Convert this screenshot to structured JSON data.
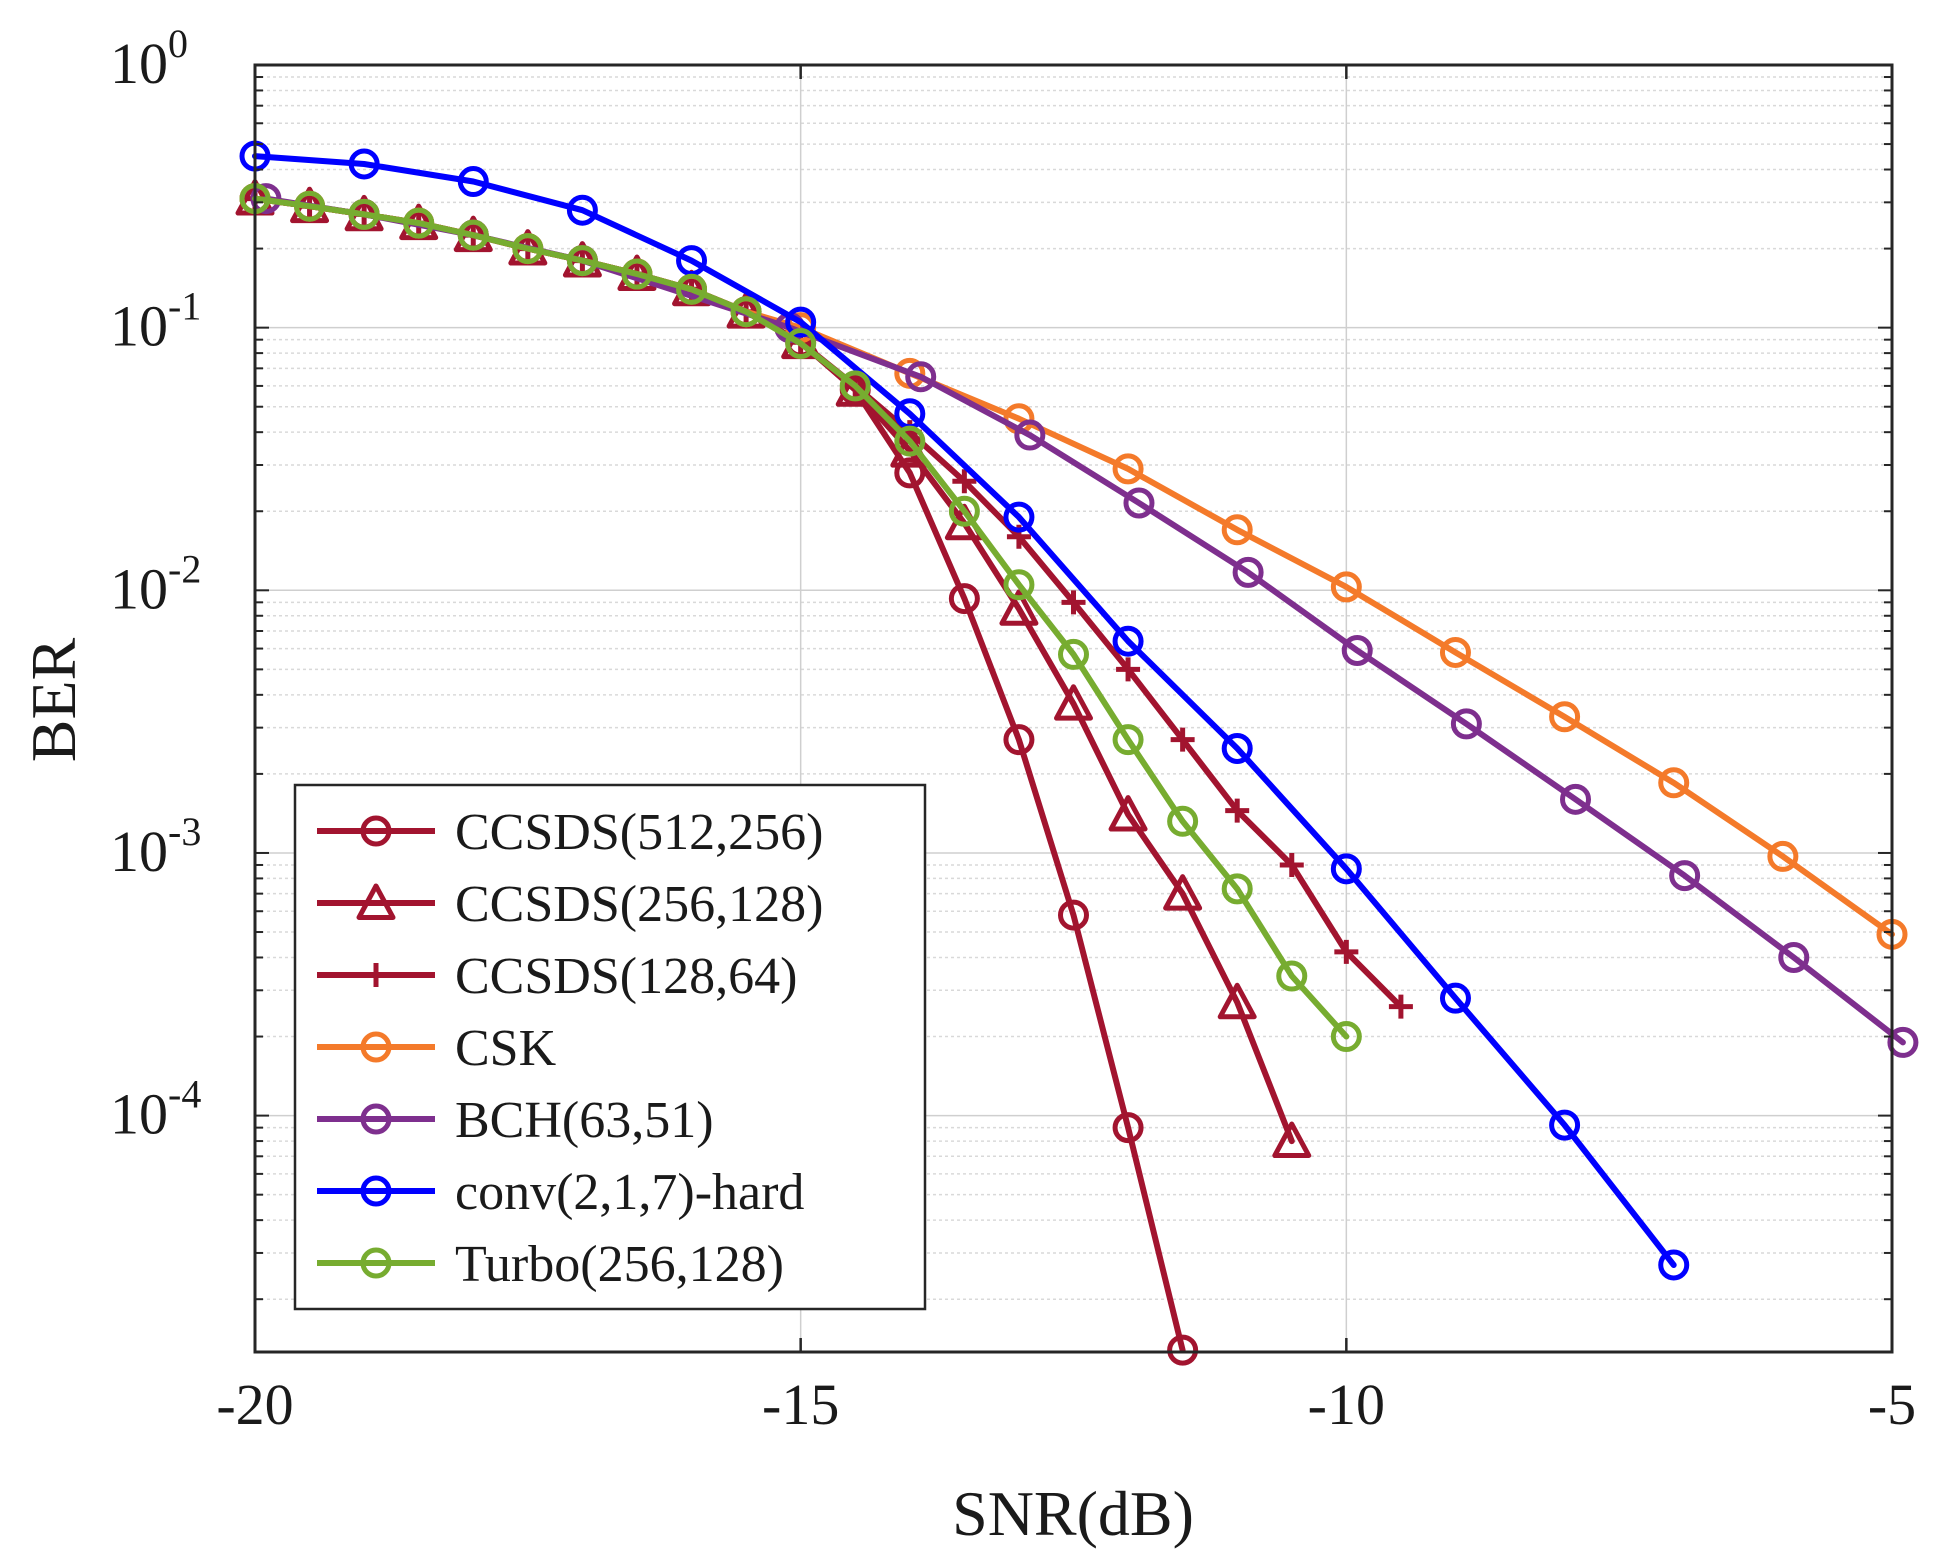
{
  "chart_data": {
    "type": "line",
    "yscale": "log",
    "xlabel": "SNR(dB)",
    "ylabel": "BER",
    "xlim": [
      -20,
      -5
    ],
    "ylim_log10": [
      -4.9,
      0
    ],
    "xticks": [
      -20,
      -15,
      -10,
      -5
    ],
    "xtick_labels": [
      "-20",
      "-15",
      "-10",
      "-5"
    ],
    "yticks": [
      {
        "base": "10",
        "exp": "0",
        "value": 1
      },
      {
        "base": "10",
        "exp": "-1",
        "value": 0.1
      },
      {
        "base": "10",
        "exp": "-2",
        "value": 0.01
      },
      {
        "base": "10",
        "exp": "-3",
        "value": 0.001
      },
      {
        "base": "10",
        "exp": "-4",
        "value": 0.0001
      }
    ],
    "grid": true,
    "legend_position": "bottom-left",
    "series": [
      {
        "name": "CCSDS(512,256)",
        "color": "#a2142f",
        "marker": "circle",
        "x": [
          -20,
          -19.5,
          -19,
          -18.5,
          -18,
          -17.5,
          -17,
          -16.5,
          -16,
          -15.5,
          -15,
          -14.5,
          -14,
          -13.5,
          -13,
          -12.5,
          -12,
          -11.5
        ],
        "y": [
          0.31,
          0.29,
          0.27,
          0.25,
          0.225,
          0.2,
          0.18,
          0.16,
          0.14,
          0.115,
          0.088,
          0.058,
          0.028,
          0.0093,
          0.0027,
          0.00058,
          9e-05,
          1.28e-05
        ]
      },
      {
        "name": "CCSDS(256,128)",
        "color": "#a2142f",
        "marker": "triangle",
        "x": [
          -20,
          -19.5,
          -19,
          -18.5,
          -18,
          -17.5,
          -17,
          -16.5,
          -16,
          -15.5,
          -15,
          -14.5,
          -14,
          -13.5,
          -13,
          -12.5,
          -12,
          -11.5,
          -11,
          -10.5
        ],
        "y": [
          0.31,
          0.29,
          0.27,
          0.25,
          0.225,
          0.2,
          0.18,
          0.16,
          0.14,
          0.115,
          0.088,
          0.058,
          0.034,
          0.018,
          0.0085,
          0.0037,
          0.0014,
          0.0007,
          0.00027,
          8e-05
        ]
      },
      {
        "name": "CCSDS(128,64)",
        "color": "#a2142f",
        "marker": "plus",
        "x": [
          -20,
          -19.5,
          -19,
          -18.5,
          -18,
          -17.5,
          -17,
          -16.5,
          -16,
          -15.5,
          -15,
          -14.5,
          -14,
          -13.5,
          -13,
          -12.5,
          -12,
          -11.5,
          -11,
          -10.5,
          -10,
          -9.5
        ],
        "y": [
          0.31,
          0.29,
          0.27,
          0.25,
          0.225,
          0.2,
          0.18,
          0.16,
          0.14,
          0.115,
          0.088,
          0.06,
          0.04,
          0.026,
          0.016,
          0.009,
          0.005,
          0.0027,
          0.00145,
          0.0009,
          0.00042,
          0.00026
        ]
      },
      {
        "name": "CSK",
        "color": "#f47a2a",
        "marker": "circle",
        "x": [
          -20,
          -19.5,
          -19,
          -18.5,
          -18,
          -17.5,
          -17,
          -16.5,
          -16,
          -15.5,
          -15,
          -14,
          -13,
          -12,
          -11,
          -10,
          -9,
          -8,
          -7,
          -6,
          -5
        ],
        "y": [
          0.31,
          0.29,
          0.27,
          0.25,
          0.225,
          0.2,
          0.18,
          0.16,
          0.14,
          0.115,
          0.1,
          0.067,
          0.045,
          0.029,
          0.017,
          0.0103,
          0.0058,
          0.0033,
          0.00185,
          0.00097,
          0.00049
        ]
      },
      {
        "name": "BCH(63,51)",
        "color": "#7e2f8e",
        "marker": "circle",
        "x": [
          -19.9,
          -19,
          -18,
          -17,
          -15.1,
          -13.9,
          -12.9,
          -11.9,
          -10.9,
          -9.9,
          -8.9,
          -7.9,
          -6.9,
          -5.9,
          -4.9
        ],
        "y": [
          0.31,
          0.27,
          0.225,
          0.18,
          0.1,
          0.065,
          0.039,
          0.0215,
          0.0117,
          0.0059,
          0.0031,
          0.0016,
          0.00082,
          0.0004,
          0.00019
        ]
      },
      {
        "name": "conv(2,1,7)-hard",
        "color": "#0000ff",
        "marker": "circle",
        "x": [
          -20,
          -19,
          -18,
          -17,
          -16,
          -15,
          -14,
          -13,
          -12,
          -11,
          -10,
          -9,
          -8,
          -7
        ],
        "y": [
          0.45,
          0.42,
          0.36,
          0.28,
          0.18,
          0.105,
          0.047,
          0.019,
          0.0064,
          0.0025,
          0.00087,
          0.00028,
          9.2e-05,
          2.7e-05
        ]
      },
      {
        "name": "Turbo(256,128)",
        "color": "#77ac30",
        "marker": "circle",
        "x": [
          -20,
          -19.5,
          -19,
          -18.5,
          -18,
          -17.5,
          -17,
          -16.5,
          -16,
          -15.5,
          -15,
          -14.5,
          -14,
          -13.5,
          -13,
          -12.5,
          -12,
          -11.5,
          -11,
          -10.5,
          -10
        ],
        "y": [
          0.31,
          0.29,
          0.27,
          0.25,
          0.225,
          0.2,
          0.18,
          0.16,
          0.14,
          0.115,
          0.087,
          0.06,
          0.037,
          0.02,
          0.0105,
          0.0057,
          0.0027,
          0.00132,
          0.00073,
          0.00034,
          0.0002
        ]
      }
    ]
  }
}
